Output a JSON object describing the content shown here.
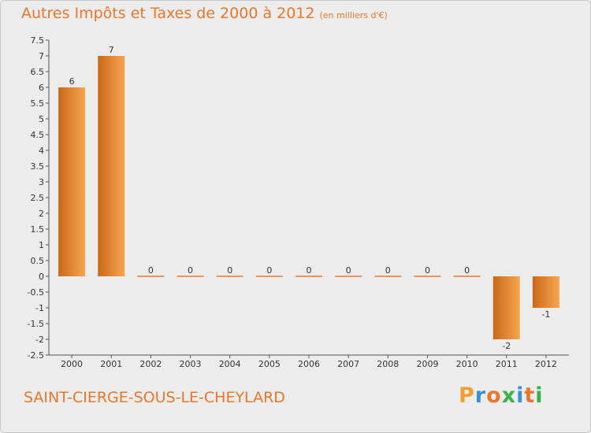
{
  "header": {
    "title": "Autres Impôts et Taxes de 2000 à 2012",
    "unit": "(en milliers d'€)"
  },
  "footer": {
    "commune": "SAINT-CIERGE-SOUS-LE-CHEYLARD"
  },
  "logo": {
    "text": "Proxiti",
    "letters": [
      "P",
      "r",
      "o",
      "x",
      "i",
      "t",
      "i"
    ],
    "colors": [
      "#f0a030",
      "#3a8fd6",
      "#e8762b",
      "#3ab04a",
      "#3a8fd6",
      "#e8762b",
      "#3ab04a"
    ]
  },
  "colors": {
    "accent": "#e8762b",
    "bar_light": "#f7a550",
    "bar_dark": "#c8691a"
  },
  "chart_data": {
    "type": "bar",
    "title": "Autres Impôts et Taxes de 2000 à 2012",
    "subtitle": "(en milliers d'€)",
    "categories": [
      "2000",
      "2001",
      "2002",
      "2003",
      "2004",
      "2005",
      "2006",
      "2007",
      "2008",
      "2009",
      "2010",
      "2011",
      "2012"
    ],
    "values": [
      6,
      7,
      0,
      0,
      0,
      0,
      0,
      0,
      0,
      0,
      0,
      -2,
      -1
    ],
    "ylim": [
      -2.5,
      7.5
    ],
    "yticks": [
      "7.5",
      "7",
      "6.5",
      "6",
      "5.5",
      "5",
      "4.5",
      "4",
      "3.5",
      "3",
      "2.5",
      "2",
      "1.5",
      "1",
      "0.5",
      "0",
      "-0.5",
      "-1",
      "-1.5",
      "-2",
      "-2.5"
    ],
    "ytick_values": [
      7.5,
      7,
      6.5,
      6,
      5.5,
      5,
      4.5,
      4,
      3.5,
      3,
      2.5,
      2,
      1.5,
      1,
      0.5,
      0,
      -0.5,
      -1,
      -1.5,
      -2,
      -2.5
    ],
    "grid": false,
    "legend": "none"
  }
}
